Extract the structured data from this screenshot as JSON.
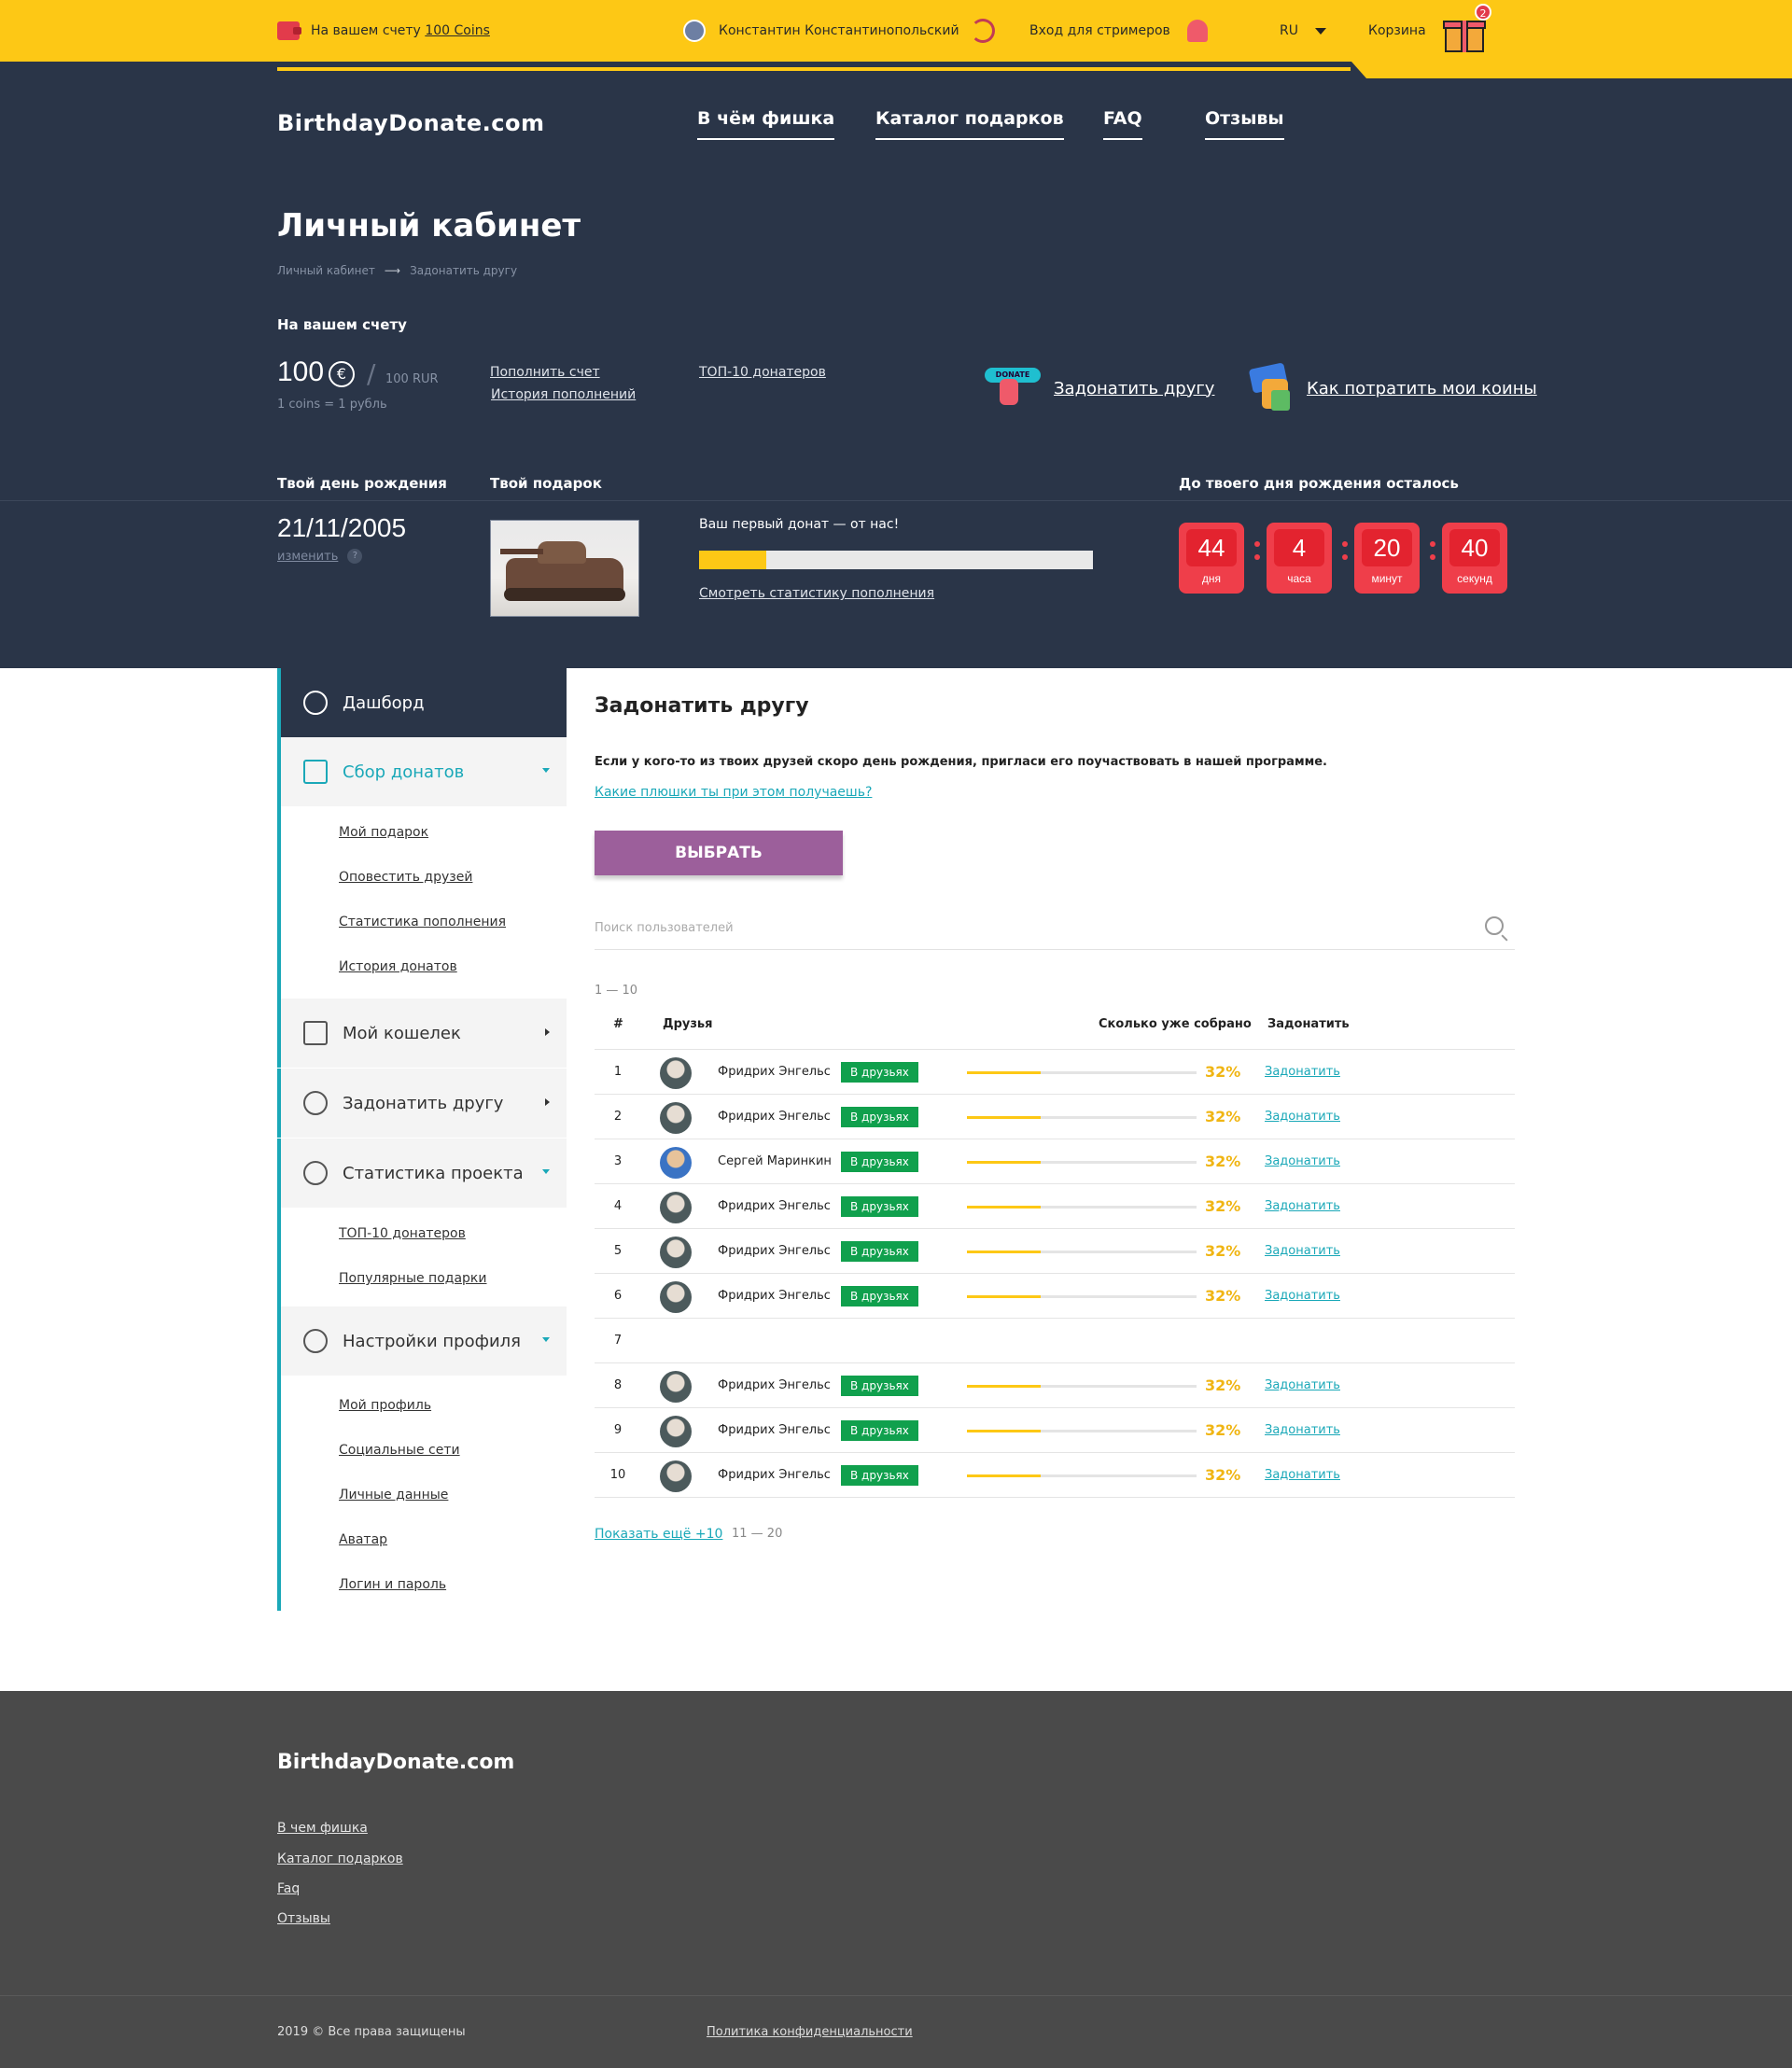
{
  "topbar": {
    "balance_prefix": "На вашем счету",
    "balance_link": "100 Coins",
    "user_name": "Константин Константинопольский",
    "streamer_login": "Вход для стримеров",
    "language": "RU",
    "cart_label": "Корзина",
    "cart_count": "2",
    "colors": {
      "bar": "#fdc815"
    }
  },
  "header": {
    "logo": "BirthdayDonate.com",
    "nav": [
      "В чём фишка",
      "Каталог подарков",
      "FAQ",
      "Отзывы"
    ],
    "page_title": "Личный кабинет",
    "breadcrumbs": [
      "Личный кабинет",
      "Задонатить другу"
    ],
    "account": {
      "label": "На вашем счету",
      "amount": "100",
      "currency_symbol": "€",
      "rur": "100 RUR",
      "rate": "1 coins = 1 рубль",
      "links": [
        "Пополнить счет",
        "История пополнений",
        "ТОП-10 донатеров"
      ],
      "action_donate": "Задонатить другу",
      "action_donate_badge": "DONATE",
      "action_spend": "Как потратить мои коины"
    },
    "birthday": {
      "label": "Твой день рождения",
      "date": "21/11/2005",
      "change": "изменить",
      "help": "?"
    },
    "gift": {
      "label": "Твой подарок",
      "first_donate": "Ваш первый донат — от нас!",
      "progress": 0.17,
      "stats_link": "Смотреть статистику пополнения"
    },
    "countdown": {
      "label": "До твоего дня рождения осталось",
      "items": [
        {
          "value": "44",
          "unit": "дня"
        },
        {
          "value": "4",
          "unit": "часа"
        },
        {
          "value": "20",
          "unit": "минут"
        },
        {
          "value": "40",
          "unit": "секунд"
        }
      ]
    },
    "colors": {
      "bg": "#2a3548",
      "countdown": "#ef3e4a"
    }
  },
  "sidebar": {
    "dashboard": "Дашборд",
    "collect": "Сбор донатов",
    "collect_items": [
      "Мой подарок",
      "Оповестить друзей",
      "Статистика пополнения",
      "История донатов"
    ],
    "wallet": "Мой кошелек",
    "donate_friend": "Задонатить другу",
    "project_stats": "Статистика проекта",
    "project_stats_items": [
      "ТОП-10 донатеров",
      "Популярные подарки"
    ],
    "profile_settings": "Настройки профиля",
    "profile_items": [
      "Мой профиль",
      "Социальные сети",
      "Личные данные",
      "Аватар",
      "Логин и пароль"
    ],
    "accent": "#1aa8b8"
  },
  "main": {
    "title": "Задонатить другу",
    "description": "Если у кого-то из твоих друзей скоро день рождения, пригласи его поучаствовать в нашей программе.",
    "help_link": "Какие плюшки ты при этом получаешь?",
    "choose_button": "ВЫБРАТЬ",
    "search_placeholder": "Поиск пользователей",
    "range": "1 — 10",
    "columns": {
      "num": "#",
      "friends": "Друзья",
      "collected": "Сколько уже собрано",
      "donate": "Задонатить"
    },
    "rows": [
      {
        "n": "1",
        "name": "Фридрих Энгельс",
        "tag": "В друзьях",
        "pct": "32%",
        "progress": 0.32,
        "action": "Задонатить"
      },
      {
        "n": "2",
        "name": "Фридрих Энгельс",
        "tag": "В друзьях",
        "pct": "32%",
        "progress": 0.32,
        "action": "Задонатить"
      },
      {
        "n": "3",
        "name": "Сергей Маринкин",
        "tag": "В друзьях",
        "pct": "32%",
        "progress": 0.32,
        "action": "Задонатить"
      },
      {
        "n": "4",
        "name": "Фридрих Энгельс",
        "tag": "В друзьях",
        "pct": "32%",
        "progress": 0.32,
        "action": "Задонатить"
      },
      {
        "n": "5",
        "name": "Фридрих Энгельс",
        "tag": "В друзьях",
        "pct": "32%",
        "progress": 0.32,
        "action": "Задонатить"
      },
      {
        "n": "6",
        "name": "Фридрих Энгельс",
        "tag": "В друзьях",
        "pct": "32%",
        "progress": 0.32,
        "action": "Задонатить"
      },
      {
        "n": "7",
        "name": "",
        "tag": "",
        "pct": "",
        "progress": null,
        "action": ""
      },
      {
        "n": "8",
        "name": "Фридрих Энгельс",
        "tag": "В друзьях",
        "pct": "32%",
        "progress": 0.32,
        "action": "Задонатить"
      },
      {
        "n": "9",
        "name": "Фридрих Энгельс",
        "tag": "В друзьях",
        "pct": "32%",
        "progress": 0.32,
        "action": "Задонатить"
      },
      {
        "n": "10",
        "name": "Фридрих Энгельс",
        "tag": "В друзьях",
        "pct": "32%",
        "progress": 0.32,
        "action": "Задонатить"
      }
    ],
    "show_more": "Показать ещё +10",
    "next_range": "11 — 20",
    "colors": {
      "button": "#9c5f9b",
      "tag": "#10a04d",
      "pct": "#f0b513"
    }
  },
  "footer": {
    "logo": "BirthdayDonate.com",
    "links": [
      "В чем фишка",
      "Каталог подарков",
      "Faq",
      "Отзывы"
    ],
    "copyright": "2019 © Все права защищены",
    "policy": "Политика конфиденциальности"
  }
}
